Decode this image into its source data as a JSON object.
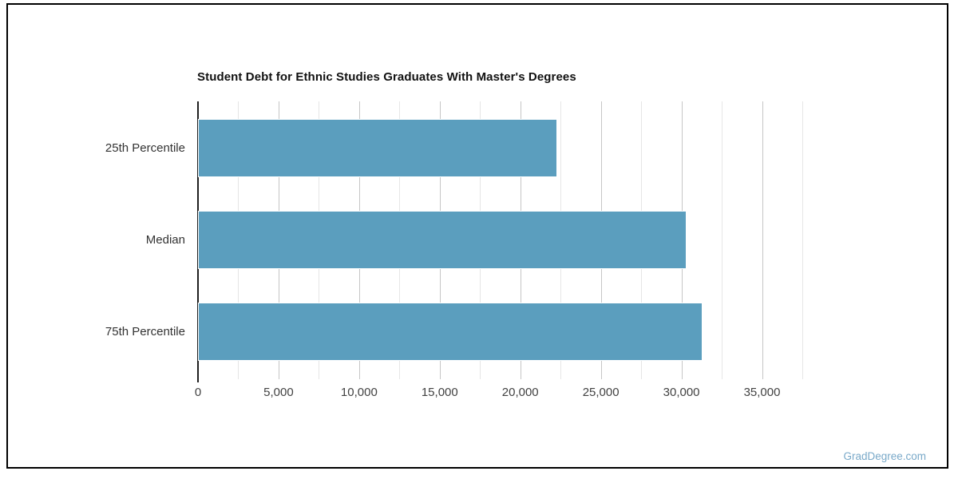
{
  "page": {
    "watermark": "GradDegree.com"
  },
  "colors": {
    "bar": "#5B9EBE",
    "bar_border": "#FFFFFF",
    "grid_major": "#C6C6C6",
    "grid_minor": "#E6E6E6",
    "axis_line": "#1F1F1F",
    "title_text": "#111111",
    "label_text": "#333333",
    "tick_text": "#424242",
    "watermark_text": "#79A9C9",
    "frame_border": "#000000",
    "background": "#FFFFFF"
  },
  "chart_data": {
    "type": "bar",
    "orientation": "horizontal",
    "title": "Student Debt for Ethnic Studies Graduates With Master's Degrees",
    "categories": [
      "25th Percentile",
      "Median",
      "75th Percentile"
    ],
    "values": [
      22300,
      30300,
      31300
    ],
    "xlabel": "",
    "ylabel": "",
    "xlim": [
      0,
      37500
    ],
    "x_ticks": [
      0,
      5000,
      10000,
      15000,
      20000,
      25000,
      30000,
      35000
    ],
    "x_tick_labels": [
      "0",
      "5,000",
      "10,000",
      "15,000",
      "20,000",
      "25,000",
      "30,000",
      "35,000"
    ],
    "minor_tick_interval": 2500,
    "grid": true,
    "legend": false
  }
}
